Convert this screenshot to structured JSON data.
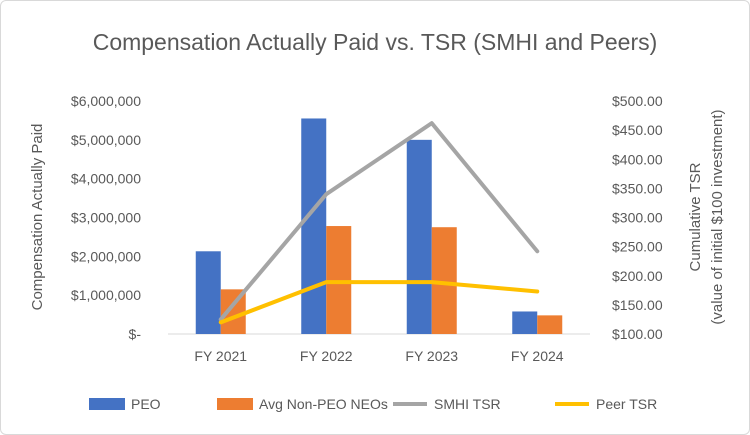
{
  "chart_data": {
    "type": "bar+line",
    "title": "Compensation Actually Paid vs. TSR (SMHI and Peers)",
    "categories": [
      "FY 2021",
      "FY 2022",
      "FY 2023",
      "FY 2024"
    ],
    "ylabel_left": "Compensation Actually Paid",
    "ylabel_right_line1": "Cumulative TSR",
    "ylabel_right_line2": "(value of initial $100 investment)",
    "ylim_left": [
      0,
      6000000
    ],
    "ylim_right": [
      100,
      500
    ],
    "left_ticks": [
      "$-",
      "$1,000,000",
      "$2,000,000",
      "$3,000,000",
      "$4,000,000",
      "$5,000,000",
      "$6,000,000"
    ],
    "left_tick_values": [
      0,
      1000000,
      2000000,
      3000000,
      4000000,
      5000000,
      6000000
    ],
    "right_ticks": [
      "$100.00",
      "$150.00",
      "$200.00",
      "$250.00",
      "$300.00",
      "$350.00",
      "$400.00",
      "$450.00",
      "$500.00"
    ],
    "right_tick_values": [
      100,
      150,
      200,
      250,
      300,
      350,
      400,
      450,
      500
    ],
    "bar_series": [
      {
        "name": "PEO",
        "color": "#4472C4",
        "values": [
          2130000,
          5550000,
          5000000,
          580000
        ]
      },
      {
        "name": "Avg Non-PEO NEOs",
        "color": "#ED7D31",
        "values": [
          1150000,
          2780000,
          2750000,
          480000
        ]
      }
    ],
    "line_series": [
      {
        "name": "SMHI TSR",
        "color": "#A5A5A5",
        "values": [
          125,
          340,
          462,
          242
        ]
      },
      {
        "name": "Peer TSR",
        "color": "#FFC000",
        "values": [
          120,
          189,
          189,
          173
        ]
      }
    ],
    "legend_position": "bottom"
  }
}
